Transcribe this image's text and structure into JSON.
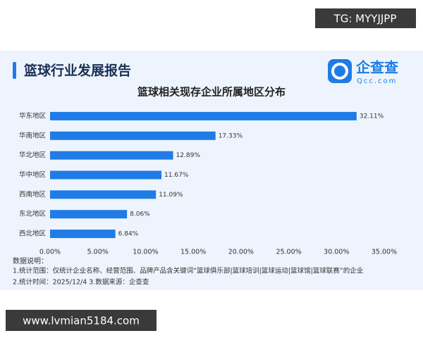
{
  "watermarks": {
    "top": "TG: MYYJJPP",
    "bottom": "www.lvmian5184.com"
  },
  "header": {
    "title": "篮球行业发展报告",
    "logo_name": "企查查",
    "logo_domain": "Qcc.com"
  },
  "notes": {
    "heading": "数据说明：",
    "line1": "1.统计范围：仅统计企业名称、经营范围、品牌产品含关键词“篮球俱乐部|篮球培训|篮球运动|篮球馆|篮球联赛”的企业",
    "line2": "2.统计时间：2025/12/4  3.数据来源：企查查"
  },
  "chart_data": {
    "type": "hbar",
    "title": "篮球相关现存企业所属地区分布",
    "categories": [
      "华东地区",
      "华南地区",
      "华北地区",
      "华中地区",
      "西南地区",
      "东北地区",
      "西北地区"
    ],
    "values": [
      32.11,
      17.33,
      12.89,
      11.67,
      11.09,
      8.06,
      6.84
    ],
    "value_labels": [
      "32.11%",
      "17.33%",
      "12.89%",
      "11.67%",
      "11.09%",
      "8.06%",
      "6.84%"
    ],
    "color": "#1f7ce6",
    "xlim": [
      0,
      35
    ],
    "xticks": [
      {
        "value": 0,
        "label": "0.00%"
      },
      {
        "value": 5,
        "label": "5.00%"
      },
      {
        "value": 10,
        "label": "10.00%"
      },
      {
        "value": 15,
        "label": "15.00%"
      },
      {
        "value": 20,
        "label": "20.00%"
      },
      {
        "value": 25,
        "label": "25.00%"
      },
      {
        "value": 30,
        "label": "30.00%"
      },
      {
        "value": 35,
        "label": "35.00%"
      }
    ],
    "grid": false
  }
}
